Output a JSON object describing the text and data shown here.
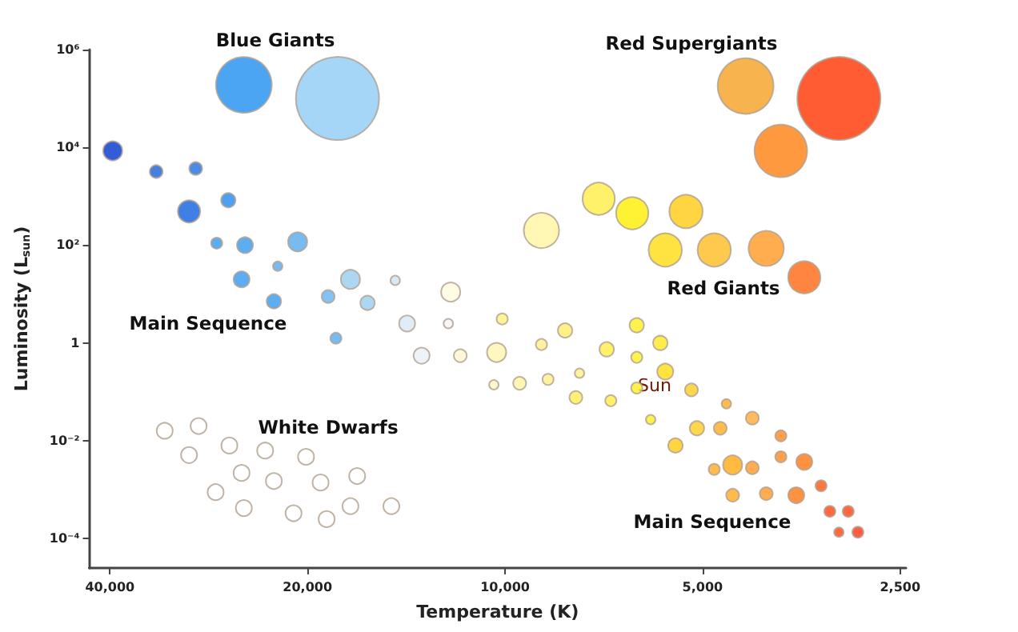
{
  "chart_data": {
    "type": "bubble",
    "xlabel": "Temperature (K)",
    "ylabel": "Luminosity (L$_{sun}$)",
    "xlim": [
      43000,
      2450
    ],
    "ylim": [
      2.5e-05,
      1000000
    ],
    "xticks": [
      {
        "value": 40000,
        "label": "40,000"
      },
      {
        "value": 20000,
        "label": "20,000"
      },
      {
        "value": 10000,
        "label": "10,000"
      },
      {
        "value": 5000,
        "label": "5,000"
      },
      {
        "value": 2500,
        "label": "2,500"
      }
    ],
    "yticks": [
      {
        "value": 0.0001,
        "label": "10⁻⁴"
      },
      {
        "value": 0.01,
        "label": "10⁻²"
      },
      1,
      {
        "value": 100,
        "label": "10²"
      },
      {
        "value": 10000,
        "label": "10⁴"
      },
      {
        "value": 1000000,
        "label": "10⁶"
      }
    ],
    "x": [
      25000,
      18000,
      39600,
      34000,
      29600,
      26400,
      30300,
      27500,
      24900,
      20700,
      22200,
      25200,
      17200,
      14700,
      18600,
      16200,
      22500,
      12100,
      18100,
      14100,
      12200,
      10100,
      13400,
      11700,
      10300,
      10400,
      9500,
      8100,
      6300,
      8800,
      7000,
      6300,
      5800,
      5700,
      8600,
      7700,
      7800,
      6900,
      6300,
      5200,
      6000,
      4600,
      4200,
      5100,
      4700,
      5500,
      3800,
      3800,
      3500,
      4500,
      4800,
      4200,
      4500,
      4000,
      3600,
      3300,
      3200,
      3000,
      3100,
      2900,
      8800,
      7200,
      6400,
      5300,
      5700,
      4800,
      4000,
      3500,
      4300,
      3100,
      3800,
      33000,
      29300,
      30300,
      26300,
      23200,
      20100,
      25200,
      22500,
      19100,
      16800,
      27600,
      25000,
      21000,
      18700,
      17200,
      14900
    ],
    "values": [
      190000,
      100000,
      8500,
      3200,
      3700,
      830,
      490,
      110,
      100,
      117,
      37,
      20,
      20,
      19,
      8.9,
      6.6,
      7.1,
      11,
      1.25,
      2.5,
      2.5,
      3.1,
      0.55,
      0.55,
      0.64,
      0.14,
      0.15,
      1.8,
      2.3,
      0.93,
      0.74,
      0.51,
      1.0,
      0.26,
      0.18,
      0.24,
      0.077,
      0.066,
      0.12,
      0.11,
      0.027,
      0.057,
      0.029,
      0.018,
      0.018,
      0.008,
      0.0126,
      0.0047,
      0.0037,
      0.0032,
      0.0026,
      0.0028,
      0.00077,
      0.00083,
      0.00077,
      0.0012,
      0.00036,
      0.00036,
      0.000135,
      0.000135,
      200,
      890,
      450,
      490,
      80,
      80,
      86,
      22,
      180000,
      100000,
      8500,
      0.016,
      0.02,
      0.0051,
      0.008,
      0.0063,
      0.0047,
      0.0022,
      0.0015,
      0.0014,
      0.0019,
      0.00089,
      0.00042,
      0.00033,
      0.00025,
      0.00046,
      0.00046
    ],
    "sizes": [
      0.45,
      1,
      0.053,
      0.024,
      0.024,
      0.03,
      0.072,
      0.018,
      0.037,
      0.053,
      0.013,
      0.037,
      0.053,
      0.013,
      0.024,
      0.03,
      0.03,
      0.053,
      0.018,
      0.037,
      0.013,
      0.018,
      0.037,
      0.024,
      0.053,
      0.013,
      0.024,
      0.03,
      0.03,
      0.018,
      0.03,
      0.018,
      0.03,
      0.037,
      0.018,
      0.013,
      0.024,
      0.018,
      0.018,
      0.024,
      0.013,
      0.013,
      0.024,
      0.03,
      0.024,
      0.03,
      0.018,
      0.018,
      0.037,
      0.053,
      0.018,
      0.024,
      0.024,
      0.024,
      0.037,
      0.018,
      0.018,
      0.018,
      0.013,
      0.018,
      0.18,
      0.15,
      0.15,
      0.16,
      0.16,
      0.16,
      0.18,
      0.15,
      0.45,
      1,
      0.4,
      0.037,
      0.037,
      0.037,
      0.037,
      0.037,
      0.037,
      0.037,
      0.037,
      0.037,
      0.037,
      0.037,
      0.037,
      0.037,
      0.037,
      0.037,
      0.037
    ],
    "colors": [
      "#1e8ff0",
      "#8ecbf5",
      "#0033cc",
      "#1a5fd6",
      "#1f6fe0",
      "#2288ee",
      "#1060dd",
      "#3399ee",
      "#3399ee",
      "#55aaee",
      "#55aaee",
      "#3399ee",
      "#99ccee",
      "#cce4f5",
      "#66b3ee",
      "#99ccf0",
      "#3399ee",
      "#fffbe0",
      "#55aaee",
      "#d8e8f5",
      "#f5f5f5",
      "#fff080",
      "#e8f0f8",
      "#fff8d0",
      "#fff5b0",
      "#fff8c0",
      "#fff5a0",
      "#ffee66",
      "#ffee22",
      "#fff088",
      "#ffee44",
      "#ffee22",
      "#ffe822",
      "#ffdd11",
      "#fff088",
      "#fff088",
      "#ffee55",
      "#ffee44",
      "#ffee22",
      "#ffcc22",
      "#ffee22",
      "#ffaa22",
      "#ffaa33",
      "#ffcc22",
      "#ffaa22",
      "#ffcc11",
      "#ff8822",
      "#ff8822",
      "#ff7711",
      "#ffaa11",
      "#ffaa22",
      "#ff9922",
      "#ffaa22",
      "#ff9922",
      "#ff7711",
      "#ff5511",
      "#ff4411",
      "#ff4411",
      "#ff4411",
      "#ff3311",
      "#fff5a0",
      "#ffee44",
      "#ffee00",
      "#ffcc11",
      "#ffdd11",
      "#ffbb22",
      "#ff9922",
      "#ff6611",
      "#f5a020",
      "#ff3300",
      "#ff8010",
      "#ffffff",
      "#ffffff",
      "#ffffff",
      "#ffffff",
      "#ffffff",
      "#ffffff",
      "#ffffff",
      "#ffffff",
      "#ffffff",
      "#ffffff",
      "#ffffff",
      "#ffffff",
      "#ffffff",
      "#ffffff",
      "#ffffff",
      "#ffffff"
    ],
    "log": "xy",
    "annotations": [
      "Blue Giants",
      "Red Supergiants",
      "Red Giants",
      "Main Sequence",
      "White Dwarfs",
      "Sun",
      "Main Sequence"
    ]
  }
}
